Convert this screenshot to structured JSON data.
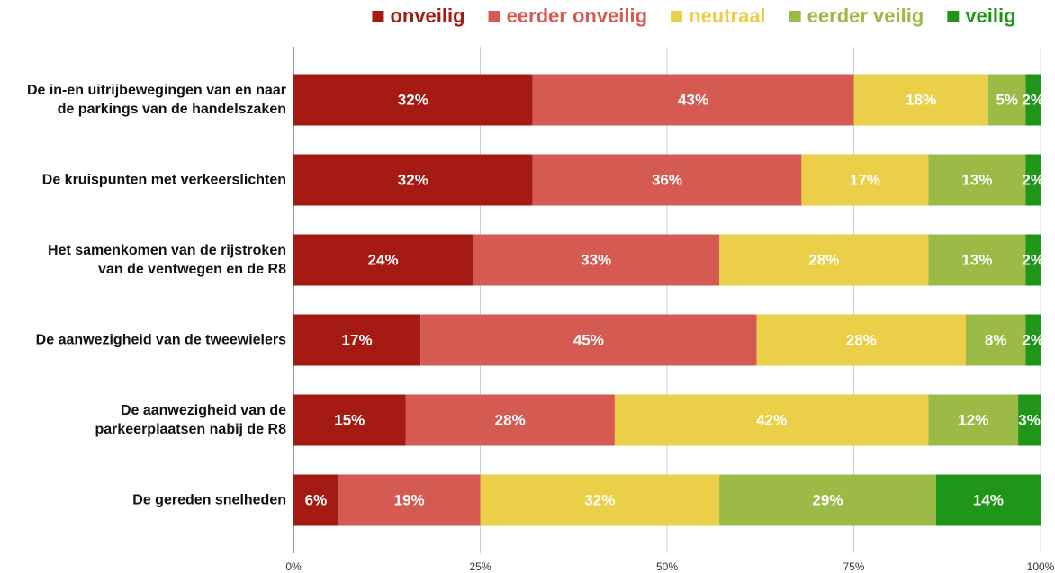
{
  "chart_data": {
    "type": "stacked-bar-horizontal",
    "categories": [
      "De in-en uitrijbewegingen van en naar\nde parkings van de handelszaken",
      "De kruispunten met verkeerslichten",
      "Het samenkomen van de rijstroken\nvan de ventwegen en de R8",
      "De aanwezigheid van de tweewielers",
      "De aanwezigheid van de\nparkeerplaatsen nabij de R8",
      "De gereden snelheden"
    ],
    "series": [
      {
        "name": "onveilig",
        "color": "#a51b13",
        "values": [
          32,
          32,
          24,
          17,
          15,
          6
        ],
        "value_labels": [
          "32%",
          "32%",
          "24%",
          "17%",
          "15%",
          "6%"
        ]
      },
      {
        "name": "eerder onveilig",
        "color": "#d55a52",
        "values": [
          43,
          36,
          33,
          45,
          28,
          19
        ],
        "value_labels": [
          "43%",
          "36%",
          "33%",
          "45%",
          "28%",
          "19%"
        ]
      },
      {
        "name": "neutraal",
        "color": "#ebcf48",
        "values": [
          18,
          17,
          28,
          28,
          42,
          32
        ],
        "value_labels": [
          "18%",
          "17%",
          "28%",
          "28%",
          "42%",
          "32%"
        ]
      },
      {
        "name": "eerder veilig",
        "color": "#9cba46",
        "values": [
          5,
          13,
          13,
          8,
          12,
          29
        ],
        "value_labels": [
          "5%",
          "13%",
          "13%",
          "8%",
          "12%",
          "29%"
        ]
      },
      {
        "name": "veilig",
        "color": "#1f961a",
        "values": [
          2,
          2,
          2,
          2,
          3,
          14
        ],
        "value_labels": [
          "2%",
          "2%",
          "2%",
          "2%",
          "3%",
          "14%"
        ]
      }
    ],
    "xlim": [
      0,
      100
    ],
    "xticks": [
      {
        "value": 0,
        "label": "0%"
      },
      {
        "value": 25,
        "label": "25%"
      },
      {
        "value": 50,
        "label": "50%"
      },
      {
        "value": 75,
        "label": "75%"
      },
      {
        "value": 100,
        "label": "100%"
      }
    ],
    "grid": true,
    "legend": "top"
  }
}
